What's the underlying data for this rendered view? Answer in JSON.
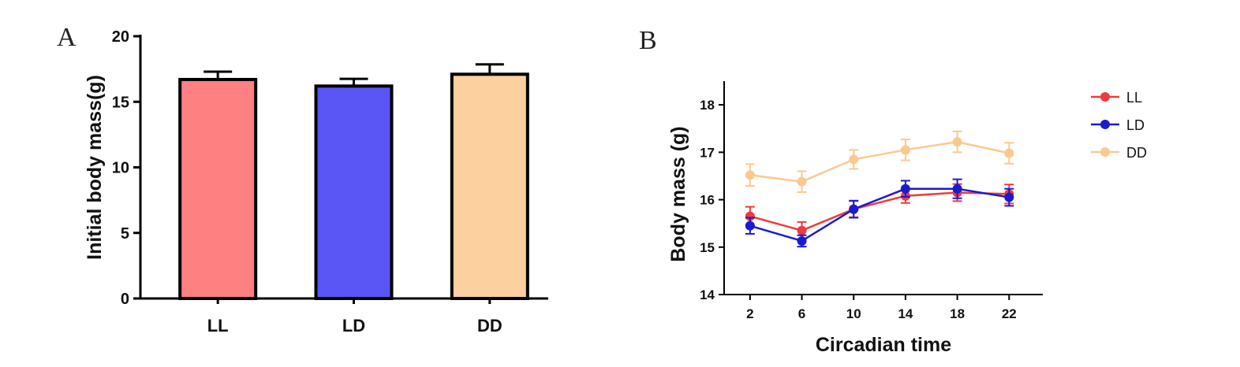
{
  "panel_labels": {
    "a": "A",
    "b": "B"
  },
  "chart_data": [
    {
      "type": "bar",
      "panel": "A",
      "categories": [
        "LL",
        "LD",
        "DD"
      ],
      "values": [
        16.7,
        16.2,
        17.1
      ],
      "errors": [
        0.6,
        0.55,
        0.75
      ],
      "colors": [
        "#ff8080",
        "#5a55f5",
        "#fdd09f"
      ],
      "xlabel": "",
      "ylabel": "Initial body mass(g)",
      "ylim": [
        0,
        20
      ],
      "yticks": [
        "0",
        "5",
        "10",
        "15",
        "20"
      ],
      "grid": false
    },
    {
      "type": "line",
      "panel": "B",
      "x": [
        2,
        6,
        10,
        14,
        18,
        22
      ],
      "xticks": [
        "2",
        "6",
        "10",
        "14",
        "18",
        "22"
      ],
      "xlabel": "Circadian time",
      "ylabel": "Body mass (g)",
      "ylim": [
        14,
        18.5
      ],
      "yticks": [
        "14",
        "15",
        "16",
        "17",
        "18"
      ],
      "grid": false,
      "legend_position": "right",
      "series": [
        {
          "name": "LL",
          "color": "#ef3b3b",
          "values": [
            15.65,
            15.35,
            15.8,
            16.08,
            16.15,
            16.12
          ],
          "errors": [
            0.2,
            0.18,
            0.17,
            0.15,
            0.18,
            0.2
          ]
        },
        {
          "name": "LD",
          "color": "#1a1ad0",
          "values": [
            15.45,
            15.13,
            15.8,
            16.23,
            16.23,
            16.05
          ],
          "errors": [
            0.17,
            0.12,
            0.18,
            0.17,
            0.2,
            0.18
          ]
        },
        {
          "name": "DD",
          "color": "#fbc990",
          "values": [
            16.52,
            16.38,
            16.85,
            17.05,
            17.22,
            16.98
          ],
          "errors": [
            0.23,
            0.22,
            0.2,
            0.22,
            0.22,
            0.22
          ]
        }
      ]
    }
  ]
}
